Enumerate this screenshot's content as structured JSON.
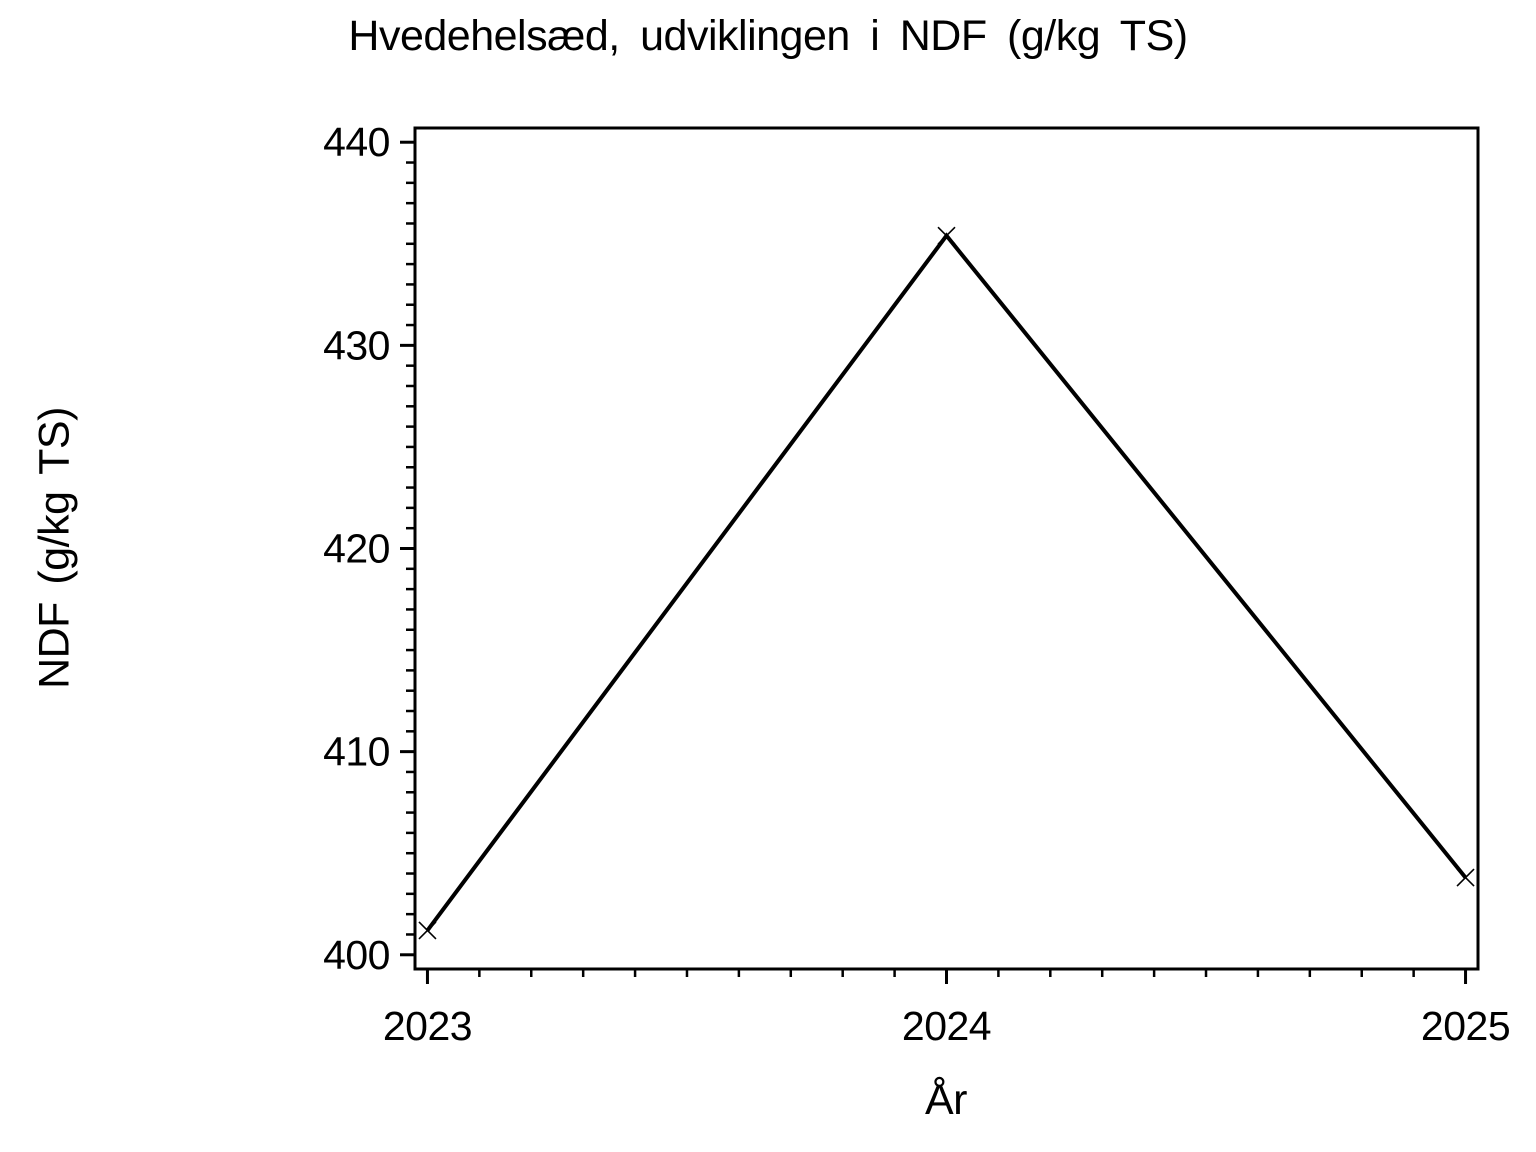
{
  "title": "Hvedehelsæd, udviklingen i NDF (g/kg TS)",
  "chart_data": {
    "type": "line",
    "title": "Hvedehelsæd, udviklingen i NDF (g/kg TS)",
    "xlabel": "År",
    "ylabel": "NDF (g/kg TS)",
    "x": [
      2023,
      2024,
      2025
    ],
    "series": [
      {
        "name": "NDF",
        "values": [
          401.2,
          435.4,
          403.8
        ]
      }
    ],
    "x_tick_labels": [
      "2023",
      "2024",
      "2025"
    ],
    "x_major_ticks": [
      2023,
      2024,
      2025
    ],
    "x_minor_step": 0.1,
    "y_tick_labels": [
      "400",
      "410",
      "420",
      "430",
      "440"
    ],
    "y_major_ticks": [
      400,
      410,
      420,
      430,
      440
    ],
    "y_minor_step": 1,
    "xlim": [
      2022.976,
      2025.024
    ],
    "ylim": [
      399.3,
      440.7
    ],
    "grid": false,
    "legend": null,
    "marker": "x",
    "line_color": "#000000",
    "axis_color": "#000000",
    "text_color": "#000000",
    "background_color": "#ffffff"
  }
}
